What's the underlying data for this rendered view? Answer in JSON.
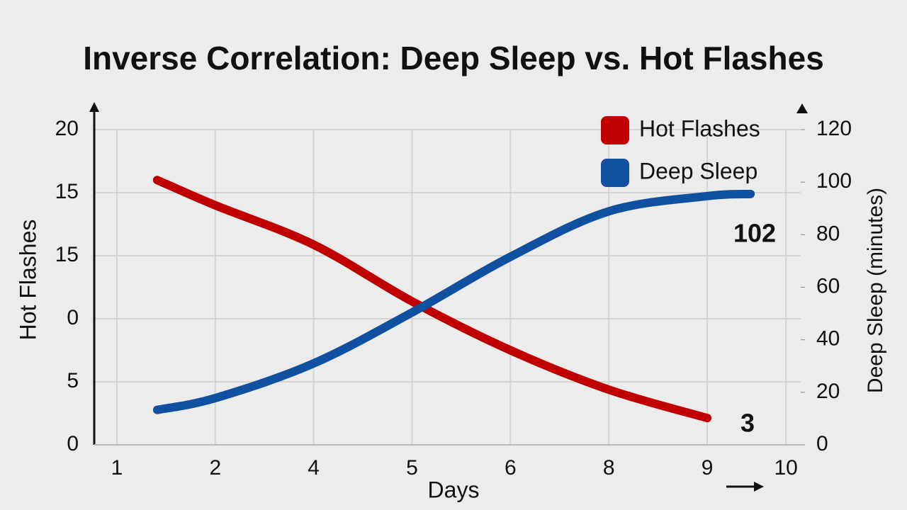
{
  "chart_data": {
    "type": "line",
    "title": "Inverse Correlation: Deep Sleep vs. Hot Flashes",
    "xlabel": "Days",
    "ylabel": "Hot Flashes",
    "y2label": "Deep Sleep (minutes)",
    "xlim": [
      0.77,
      7.95
    ],
    "xticks": [
      1,
      2,
      {
        "value": 3,
        "label": "4"
      },
      {
        "value": 4,
        "label": "5"
      },
      {
        "value": 5,
        "label": "6"
      },
      {
        "value": 6,
        "label": "8"
      },
      {
        "value": 7,
        "label": "9"
      },
      {
        "value": 7.8,
        "label": "10"
      }
    ],
    "ylim": [
      0,
      20
    ],
    "yticks": [
      {
        "value": 0,
        "label": "0"
      },
      {
        "value": 4,
        "label": "5"
      },
      {
        "value": 8,
        "label": "0"
      },
      {
        "value": 12,
        "label": "15"
      },
      {
        "value": 16,
        "label": "15"
      },
      20
    ],
    "y2lim": [
      0,
      120
    ],
    "y2ticks": [
      0,
      20,
      40,
      60,
      80,
      100,
      120
    ],
    "grid": true,
    "legend": "upper right",
    "series": [
      {
        "name": "Hot Flashes",
        "color": "#c00000",
        "x": [
          1.41,
          2,
          3,
          4,
          5,
          6,
          7
        ],
        "values": [
          16.8,
          15.2,
          12.7,
          9.1,
          6.0,
          3.5,
          1.7
        ]
      },
      {
        "name": "Deep Sleep",
        "color": "#1050a0",
        "axis": "y2",
        "x": [
          1.41,
          2,
          3,
          4,
          5,
          6,
          7,
          7.44
        ],
        "values": [
          13.3,
          17.8,
          31,
          50.4,
          71.6,
          88.9,
          94.7,
          95.5
        ]
      }
    ],
    "annotations": [
      "102",
      "3"
    ]
  }
}
